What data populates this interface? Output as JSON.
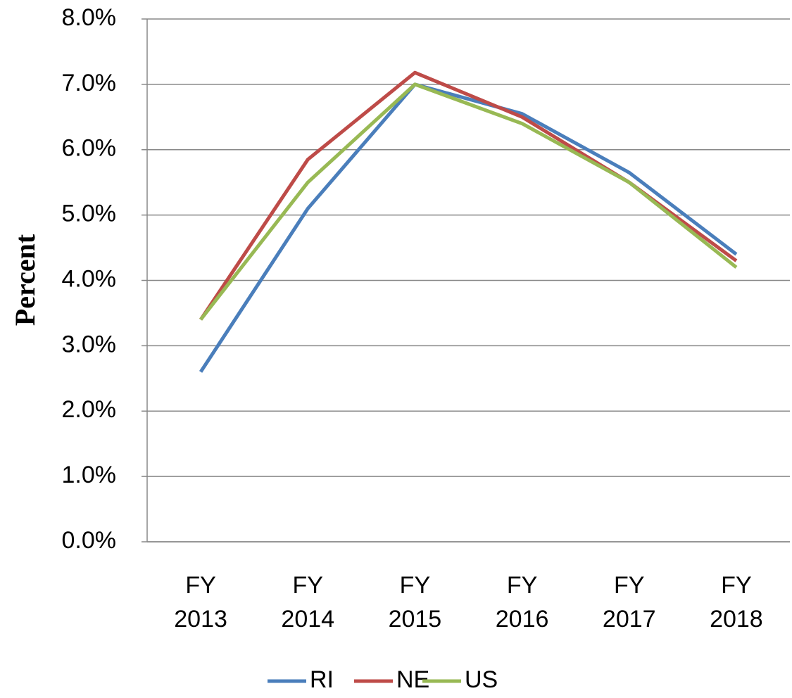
{
  "chart_data": {
    "type": "line",
    "y_label": "Percent",
    "categories": [
      "FY 2013",
      "FY 2014",
      "FY 2015",
      "FY 2016",
      "FY 2017",
      "FY 2018"
    ],
    "series": [
      {
        "name": "RI",
        "color": "#4a7ebb",
        "values": [
          2.6,
          5.1,
          7.0,
          6.55,
          5.65,
          4.4
        ]
      },
      {
        "name": "NE",
        "color": "#be4b48",
        "values": [
          3.4,
          5.85,
          7.18,
          6.5,
          5.5,
          4.3
        ]
      },
      {
        "name": "US",
        "color": "#98b954",
        "values": [
          3.4,
          5.5,
          7.0,
          6.4,
          5.5,
          4.2
        ]
      }
    ],
    "ylim": [
      0,
      8
    ],
    "yticks": [
      {
        "value": 0,
        "label": "0.0%"
      },
      {
        "value": 1,
        "label": "1.0%"
      },
      {
        "value": 2,
        "label": "2.0%"
      },
      {
        "value": 3,
        "label": "3.0%"
      },
      {
        "value": 4,
        "label": "4.0%"
      },
      {
        "value": 5,
        "label": "5.0%"
      },
      {
        "value": 6,
        "label": "6.0%"
      },
      {
        "value": 7,
        "label": "7.0%"
      },
      {
        "value": 8,
        "label": "8.0%"
      }
    ],
    "grid": true,
    "legend": "bottom"
  }
}
